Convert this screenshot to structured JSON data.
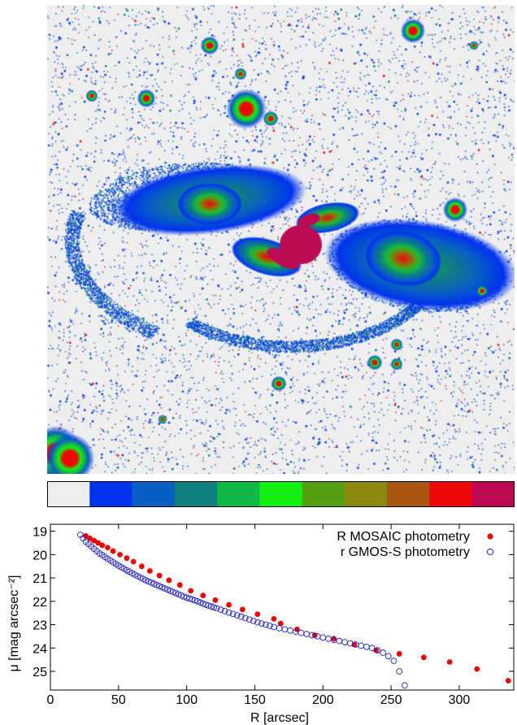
{
  "image": {
    "background": "#eeeeee",
    "colormap": [
      "#eeeeee",
      "#0033ee",
      "#0a5fc4",
      "#0f8080",
      "#10b848",
      "#14ee14",
      "#55a010",
      "#8a8a10",
      "#a85510",
      "#ee0808",
      "#bb0b55"
    ]
  },
  "chart_data": {
    "type": "scatter",
    "xlabel": "R [arcsec]",
    "ylabel": "μ [mag arcsec⁻²]",
    "xlim": [
      0,
      340
    ],
    "ylim": [
      25.8,
      18.7
    ],
    "y_inverted": true,
    "xticks": [
      0,
      50,
      100,
      150,
      200,
      250,
      300
    ],
    "yticks": [
      19,
      20,
      21,
      22,
      23,
      24,
      25
    ],
    "legend_position": "top-right",
    "series": [
      {
        "name": "R MOSAIC photometry",
        "marker": "filled-circle",
        "color": "#ee0000",
        "x": [
          26,
          29,
          32,
          35,
          38,
          42,
          46,
          51,
          56,
          61,
          67,
          73,
          80,
          87,
          95,
          103,
          112,
          121,
          131,
          141,
          152,
          164,
          169,
          181,
          194,
          208,
          223,
          239,
          256,
          274,
          293,
          313,
          336
        ],
        "y": [
          19.2,
          19.3,
          19.4,
          19.5,
          19.6,
          19.7,
          19.85,
          20.0,
          20.15,
          20.3,
          20.5,
          20.7,
          20.9,
          21.1,
          21.3,
          21.55,
          21.75,
          21.95,
          22.15,
          22.35,
          22.55,
          22.75,
          22.95,
          23.2,
          23.45,
          23.6,
          23.85,
          24.1,
          24.25,
          24.4,
          24.6,
          24.9,
          25.4
        ]
      },
      {
        "name": "r GMOS-S photometry",
        "marker": "open-circle",
        "color": "#2222cc",
        "x": [
          22,
          24,
          26,
          28,
          30,
          32,
          34,
          36,
          38,
          40,
          42,
          44,
          46,
          48,
          50,
          52,
          54,
          56,
          58,
          60,
          62,
          64,
          66,
          68,
          70,
          72,
          74,
          76,
          78,
          80,
          82,
          84,
          86,
          88,
          90,
          92,
          94,
          96,
          98,
          100,
          102,
          104,
          106,
          108,
          110,
          112,
          114,
          116,
          118,
          120,
          122,
          125,
          128,
          131,
          134,
          137,
          140,
          143,
          146,
          149,
          152,
          155,
          158,
          161,
          164,
          168,
          172,
          176,
          180,
          184,
          188,
          192,
          196,
          200,
          204,
          208,
          212,
          216,
          220,
          224,
          228,
          232,
          236,
          240,
          244,
          248,
          252,
          256,
          260
        ],
        "y": [
          19.15,
          19.3,
          19.45,
          19.55,
          19.65,
          19.75,
          19.85,
          19.95,
          20.02,
          20.1,
          20.18,
          20.25,
          20.33,
          20.4,
          20.47,
          20.54,
          20.6,
          20.67,
          20.73,
          20.8,
          20.86,
          20.92,
          20.98,
          21.04,
          21.1,
          21.15,
          21.2,
          21.25,
          21.3,
          21.35,
          21.4,
          21.45,
          21.5,
          21.55,
          21.6,
          21.65,
          21.7,
          21.75,
          21.8,
          21.84,
          21.88,
          21.92,
          21.96,
          22.0,
          22.05,
          22.1,
          22.14,
          22.18,
          22.22,
          22.26,
          22.3,
          22.36,
          22.42,
          22.48,
          22.54,
          22.6,
          22.66,
          22.72,
          22.78,
          22.84,
          22.9,
          22.95,
          23.0,
          23.05,
          23.1,
          23.15,
          23.2,
          23.25,
          23.3,
          23.35,
          23.4,
          23.45,
          23.5,
          23.55,
          23.6,
          23.65,
          23.7,
          23.75,
          23.8,
          23.85,
          23.9,
          23.95,
          24.0,
          24.1,
          24.2,
          24.35,
          24.55,
          25.0,
          25.6
        ]
      }
    ]
  }
}
